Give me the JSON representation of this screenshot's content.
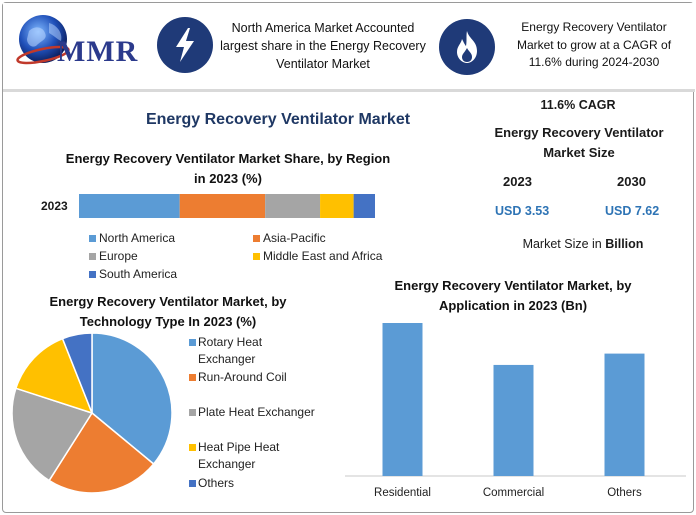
{
  "header": {
    "logo_text": "MMR",
    "left_statement": "North America Market Accounted largest share in the Energy Recovery Ventilator Market",
    "right_statement": "Energy Recovery Ventilator Market to grow at a CAGR of 11.6% during 2024-2030",
    "left_icon": "lightning-icon",
    "right_icon": "flame-icon",
    "icon_color": "#1f3a78"
  },
  "title": "Energy Recovery Ventilator Market",
  "market_size": {
    "cagr": "11.6% CAGR",
    "title": "Energy Recovery Ventilator Market Size",
    "year_a": "2023",
    "year_b": "2030",
    "value_a": "USD 3.53",
    "value_b": "USD 7.62",
    "note_prefix": "Market Size in ",
    "note_unit": "Billion"
  },
  "chart_data": [
    {
      "type": "bar",
      "orientation": "horizontal-stacked",
      "title": "Energy Recovery Ventilator Market Share, by Region in 2023 (%)",
      "categories": [
        "2023"
      ],
      "series": [
        {
          "name": "North America",
          "values": [
            33
          ],
          "color": "#5b9bd5"
        },
        {
          "name": "Asia-Pacific",
          "values": [
            28
          ],
          "color": "#ed7d31"
        },
        {
          "name": "Europe",
          "values": [
            18
          ],
          "color": "#a5a5a5"
        },
        {
          "name": "Middle East and Africa",
          "values": [
            11
          ],
          "color": "#ffc000"
        },
        {
          "name": "South America",
          "values": [
            7
          ],
          "color": "#4472c4"
        }
      ]
    },
    {
      "type": "pie",
      "title": "Energy Recovery Ventilator Market, by Technology Type In 2023 (%)",
      "labels": [
        "Rotary Heat Exchanger",
        "Run-Around Coil",
        "Plate Heat Exchanger",
        "Heat Pipe Heat Exchanger",
        "Others"
      ],
      "values": [
        36,
        23,
        21,
        14,
        6
      ],
      "colors": [
        "#5b9bd5",
        "#ed7d31",
        "#a5a5a5",
        "#ffc000",
        "#4472c4"
      ]
    },
    {
      "type": "bar",
      "title": "Energy Recovery Ventilator Market, by Application in 2023 (Bn)",
      "categories": [
        "Residential",
        "Commercial",
        "Others"
      ],
      "values": [
        1.35,
        0.98,
        1.08
      ],
      "ylim": [
        0,
        1.5
      ],
      "color": "#5b9bd5"
    }
  ]
}
